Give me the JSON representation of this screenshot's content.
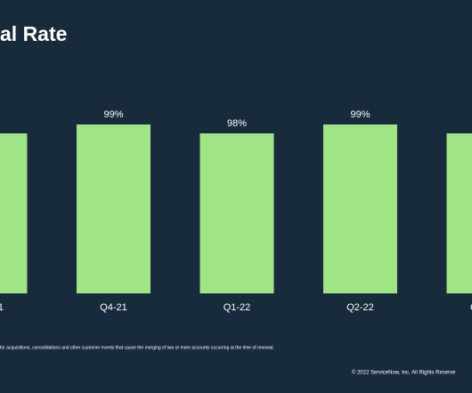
{
  "chart_data": {
    "type": "bar",
    "title": "al Rate",
    "categories": [
      "1",
      "Q4-21",
      "Q1-22",
      "Q2-22",
      "Q"
    ],
    "values": [
      98,
      99,
      98,
      99,
      98
    ],
    "value_labels": [
      null,
      "99%",
      "98%",
      "99%",
      null
    ],
    "color": "#a0e585",
    "ylim": [
      80,
      100
    ],
    "footnote": "for acquisitions, consolidations and other customer events that cause the merging of two or more accounts occurring at the time of renewal.",
    "copyright": "© 2022 ServiceNow, Inc. All Rights Reserve"
  }
}
